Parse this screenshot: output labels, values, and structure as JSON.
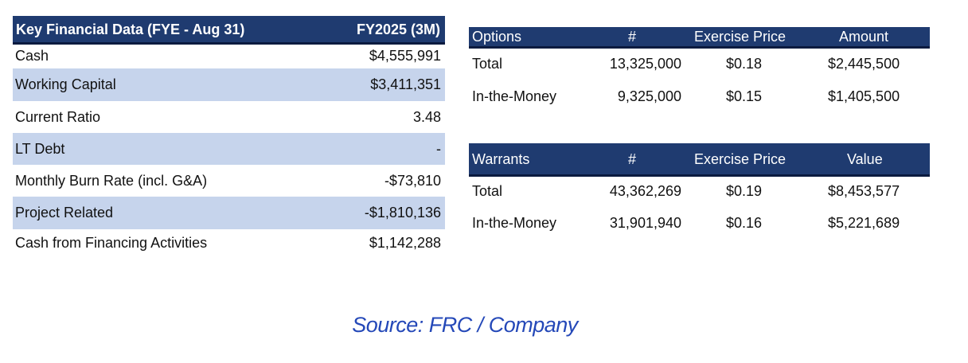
{
  "key_table": {
    "header_label": "Key Financial Data (FYE - Aug 31)",
    "header_period": "FY2025 (3M)",
    "rows": [
      {
        "label": "Cash",
        "value": "$4,555,991"
      },
      {
        "label": "Working Capital",
        "value": "$3,411,351"
      },
      {
        "label": "Current Ratio",
        "value": "3.48"
      },
      {
        "label": "LT Debt",
        "value": "-"
      },
      {
        "label": "Monthly Burn Rate (incl. G&A)",
        "value": "-$73,810"
      },
      {
        "label": "Project Related",
        "value": "-$1,810,136"
      },
      {
        "label": "Cash from Financing Activities",
        "value": "$1,142,288"
      }
    ]
  },
  "options_table": {
    "headers": [
      "Options",
      "#",
      "Exercise Price",
      "Amount"
    ],
    "rows": [
      {
        "label": "Total",
        "count": "13,325,000",
        "price": "$0.18",
        "amount": "$2,445,500"
      },
      {
        "label": "In-the-Money",
        "count": "9,325,000",
        "price": "$0.15",
        "amount": "$1,405,500"
      }
    ]
  },
  "warrants_table": {
    "headers": [
      "Warrants",
      "#",
      "Exercise Price",
      "Value"
    ],
    "rows": [
      {
        "label": "Total",
        "count": "43,362,269",
        "price": "$0.19",
        "amount": "$8,453,577"
      },
      {
        "label": "In-the-Money",
        "count": "31,901,940",
        "price": "$0.16",
        "amount": "$5,221,689"
      }
    ]
  },
  "source_note": "Source: FRC / Company",
  "colors": {
    "header_bg": "#1f3b70",
    "header_rule": "#0b1b3f",
    "row_shade": "#c6d4ec",
    "source_text": "#2448b8"
  }
}
